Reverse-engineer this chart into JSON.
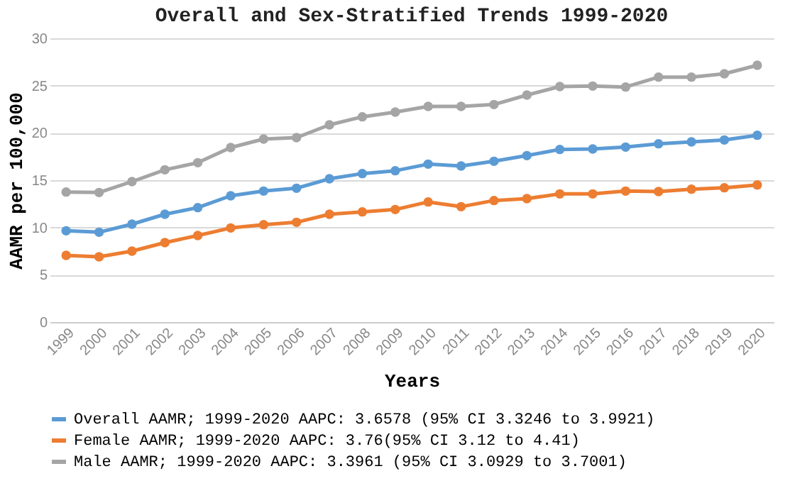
{
  "chart_data": {
    "type": "line",
    "title": "Overall and Sex-Stratified Trends 1999-2020",
    "xlabel": "Years",
    "ylabel": "AAMR per 100,000",
    "categories": [
      "1999",
      "2000",
      "2001",
      "2002",
      "2003",
      "2004",
      "2005",
      "2006",
      "2007",
      "2008",
      "2009",
      "2010",
      "2011",
      "2012",
      "2013",
      "2014",
      "2015",
      "2016",
      "2017",
      "2018",
      "2019",
      "2020"
    ],
    "series": [
      {
        "name": "Overall AAMR; 1999-2020 AAPC: 3.6578 (95% CI 3.3246 to 3.9921)",
        "color": "#5b9bd5",
        "values": [
          9.65,
          9.5,
          10.35,
          11.4,
          12.1,
          13.35,
          13.85,
          14.15,
          15.15,
          15.7,
          16.0,
          16.7,
          16.5,
          17.0,
          17.6,
          18.25,
          18.3,
          18.5,
          18.85,
          19.05,
          19.25,
          19.75
        ]
      },
      {
        "name": "Female AAMR; 1999-2020 AAPC: 3.76(95% CI 3.12 to 4.41)",
        "color": "#ed7d31",
        "values": [
          7.05,
          6.9,
          7.5,
          8.4,
          9.15,
          9.95,
          10.3,
          10.55,
          11.4,
          11.65,
          11.9,
          12.7,
          12.2,
          12.85,
          13.05,
          13.55,
          13.55,
          13.85,
          13.8,
          14.05,
          14.2,
          14.5
        ]
      },
      {
        "name": "Male AAMR; 1999-2020 AAPC: 3.3961 (95% CI 3.0929 to 3.7001)",
        "color": "#a5a5a5",
        "values": [
          13.75,
          13.7,
          14.85,
          16.1,
          16.85,
          18.45,
          19.35,
          19.5,
          20.85,
          21.7,
          22.2,
          22.8,
          22.8,
          23.0,
          24.0,
          24.9,
          24.95,
          24.85,
          25.9,
          25.9,
          26.25,
          27.15
        ]
      }
    ],
    "ylim": [
      0,
      30
    ],
    "yticks": [
      0,
      5,
      10,
      15,
      20,
      25,
      30
    ],
    "grid": "y",
    "legend": "bottom",
    "marker": "circle",
    "line_style": "solid"
  }
}
